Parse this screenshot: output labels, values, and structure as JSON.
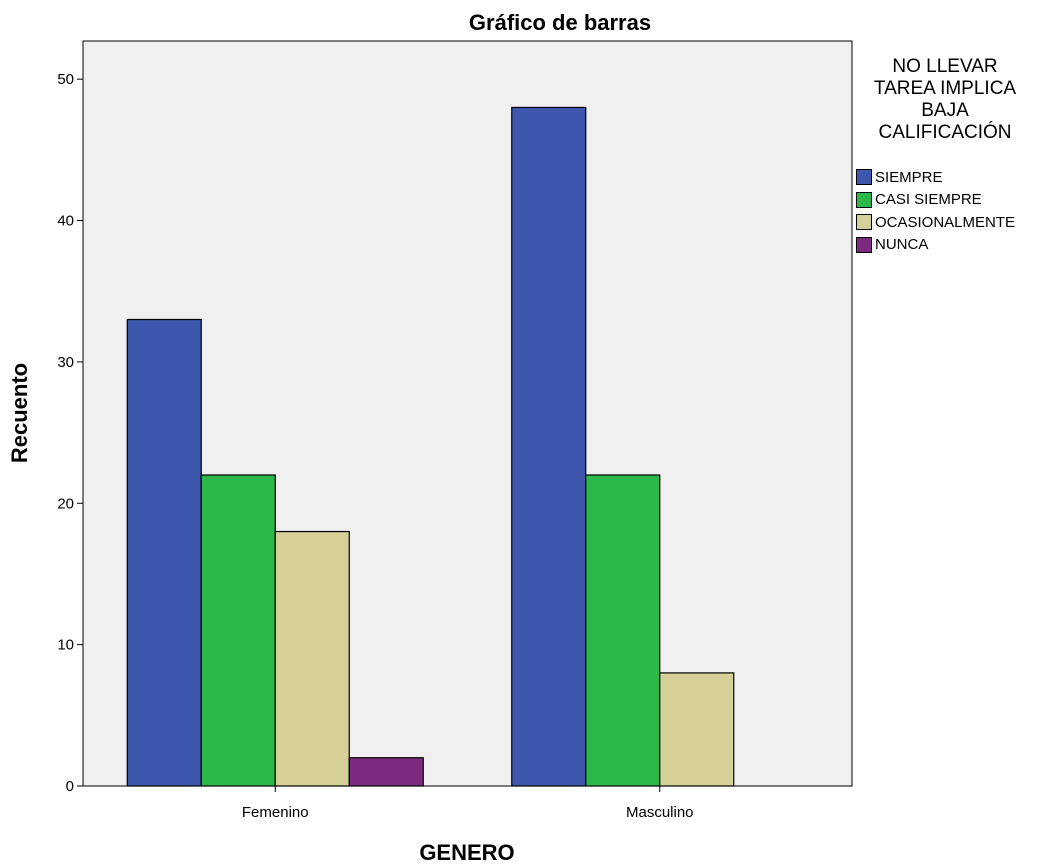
{
  "chart_data": {
    "type": "bar",
    "title": "Gráfico de barras",
    "xlabel": "GENERO",
    "ylabel": "Recuento",
    "categories": [
      "Femenino",
      "Masculino"
    ],
    "series": [
      {
        "name": "SIEMPRE",
        "color": "#3d57ad",
        "values": [
          33,
          48
        ]
      },
      {
        "name": "CASI SIEMPRE",
        "color": "#2db84a",
        "values": [
          22,
          22
        ]
      },
      {
        "name": "OCASIONALMENTE",
        "color": "#d5cf98",
        "values": [
          18,
          8
        ]
      },
      {
        "name": "NUNCA",
        "color": "#7b2a80",
        "values": [
          2,
          0
        ]
      }
    ],
    "ylim": [
      0,
      52.7
    ],
    "yticks": [
      0,
      10,
      20,
      30,
      40,
      50
    ],
    "grid": false,
    "plot_background": "#f0f0f0",
    "legend": {
      "title_lines": [
        "NO LLEVAR",
        "TAREA IMPLICA",
        "BAJA",
        "CALIFICACIÓN"
      ],
      "placement": "right"
    }
  }
}
